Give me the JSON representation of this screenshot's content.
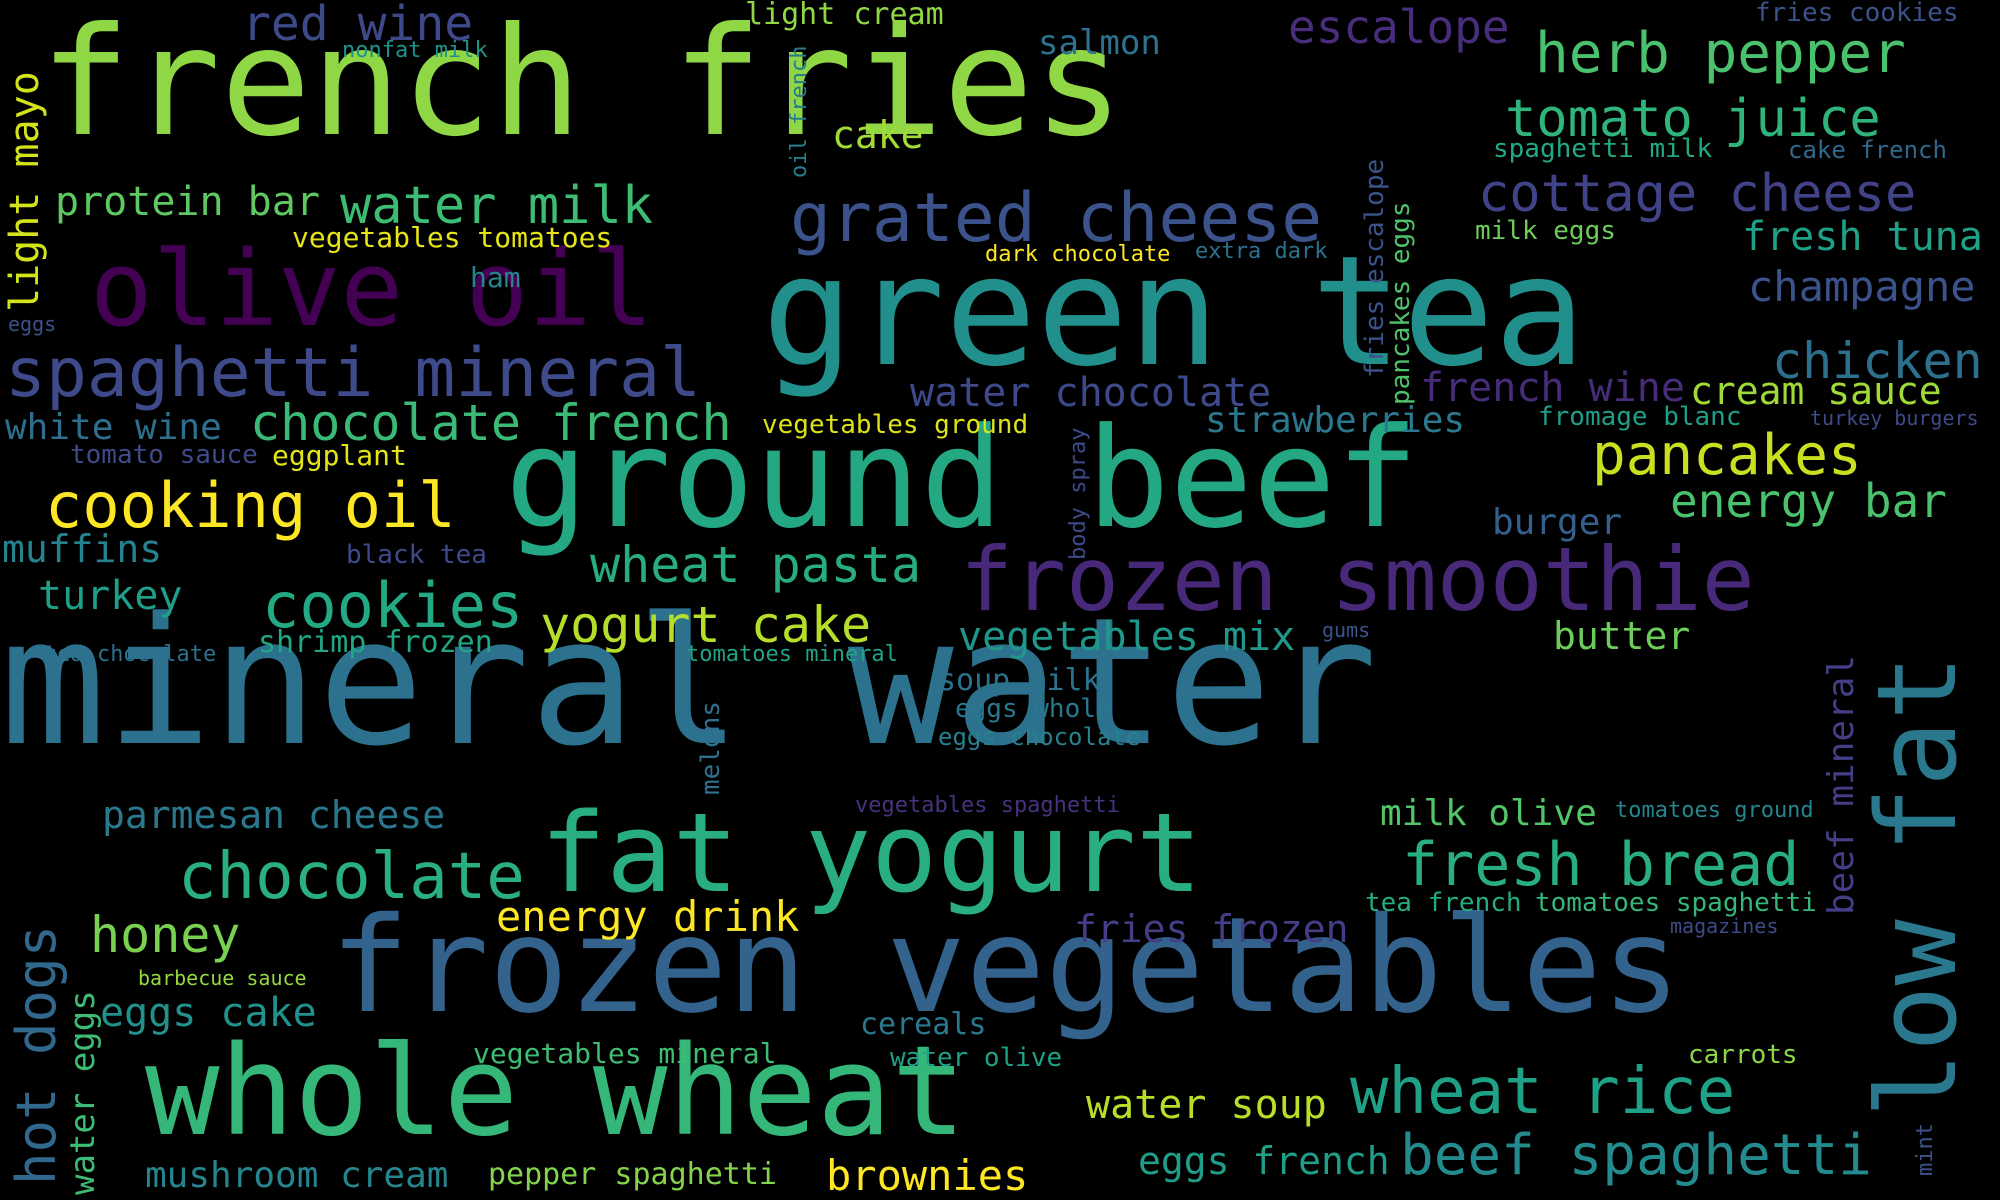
{
  "cloud": {
    "background": "#000000",
    "words": [
      {
        "text": "french fries",
        "color": "#8fd744"
      },
      {
        "text": "mineral water",
        "color": "#2c728e"
      },
      {
        "text": "green tea",
        "color": "#21908d"
      },
      {
        "text": "ground beef",
        "color": "#24a884"
      },
      {
        "text": "frozen vegetables",
        "color": "#33638d"
      },
      {
        "text": "whole wheat",
        "color": "#35b779"
      },
      {
        "text": "fat yogurt",
        "color": "#29af7f"
      },
      {
        "text": "olive oil",
        "color": "#440154"
      },
      {
        "text": "frozen smoothie",
        "color": "#482878"
      },
      {
        "text": "low fat",
        "color": "#2a788e"
      },
      {
        "text": "spaghetti mineral",
        "color": "#3e4a89"
      },
      {
        "text": "grated cheese",
        "color": "#3b528b"
      },
      {
        "text": "herb pepper",
        "color": "#4ac16d"
      },
      {
        "text": "tomato juice",
        "color": "#2fb47c"
      },
      {
        "text": "cottage cheese",
        "color": "#404387"
      },
      {
        "text": "water milk",
        "color": "#3dbc74"
      },
      {
        "text": "chocolate french",
        "color": "#3aba76"
      },
      {
        "text": "cooking oil",
        "color": "#fde725"
      },
      {
        "text": "cookies",
        "color": "#23a983"
      },
      {
        "text": "chocolate",
        "color": "#2ab07f"
      },
      {
        "text": "wheat pasta",
        "color": "#27ad81"
      },
      {
        "text": "yogurt cake",
        "color": "#b5de2b"
      },
      {
        "text": "fresh bread",
        "color": "#28ae80"
      },
      {
        "text": "wheat rice",
        "color": "#1fa188"
      },
      {
        "text": "beef spaghetti",
        "color": "#238a8d"
      },
      {
        "text": "pancakes",
        "color": "#c8e020"
      },
      {
        "text": "energy bar",
        "color": "#4ac16d"
      },
      {
        "text": "chicken",
        "color": "#2d708e"
      },
      {
        "text": "champagne",
        "color": "#3b528b"
      },
      {
        "text": "fresh tuna",
        "color": "#1fa187"
      },
      {
        "text": "cream sauce",
        "color": "#a0da39"
      },
      {
        "text": "escalope",
        "color": "#472d7b"
      },
      {
        "text": "red wine",
        "color": "#3e4989"
      },
      {
        "text": "light mayo",
        "color": "#d2e21b"
      },
      {
        "text": "protein bar",
        "color": "#5ec962"
      },
      {
        "text": "white wine",
        "color": "#2e6f8e"
      },
      {
        "text": "turkey",
        "color": "#1f9e89"
      },
      {
        "text": "muffins",
        "color": "#26828e"
      },
      {
        "text": "honey",
        "color": "#7ad151"
      },
      {
        "text": "hot dogs",
        "color": "#31688e"
      },
      {
        "text": "eggs cake",
        "color": "#21918c"
      },
      {
        "text": "parmesan cheese",
        "color": "#2a788e"
      },
      {
        "text": "energy drink",
        "color": "#fde725"
      },
      {
        "text": "mushroom cream",
        "color": "#25858e"
      },
      {
        "text": "pepper spaghetti",
        "color": "#84d44b"
      },
      {
        "text": "brownies",
        "color": "#fde725"
      },
      {
        "text": "water soup",
        "color": "#b8de29"
      },
      {
        "text": "eggs french",
        "color": "#1f9e89"
      },
      {
        "text": "water chocolate",
        "color": "#3e4989"
      },
      {
        "text": "strawberries",
        "color": "#2a788e"
      },
      {
        "text": "vegetables mix",
        "color": "#1f988b"
      },
      {
        "text": "butter",
        "color": "#6ccd5a"
      },
      {
        "text": "burger",
        "color": "#355f8d"
      },
      {
        "text": "french wine",
        "color": "#472c7a"
      },
      {
        "text": "fries frozen",
        "color": "#433e85"
      },
      {
        "text": "milk olive",
        "color": "#52c569"
      },
      {
        "text": "salmon",
        "color": "#2c728e"
      },
      {
        "text": "light cream",
        "color": "#90d743"
      },
      {
        "text": "cake",
        "color": "#a2da37"
      },
      {
        "text": "ham",
        "color": "#25848e"
      },
      {
        "text": "vegetables tomatoes",
        "color": "#e5e419"
      },
      {
        "text": "nonfat milk",
        "color": "#20928c"
      },
      {
        "text": "eggs",
        "color": "#3b528b"
      },
      {
        "text": "tomato sauce",
        "color": "#3e4a89"
      },
      {
        "text": "eggplant",
        "color": "#e2e418"
      },
      {
        "text": "black tea",
        "color": "#3e4989"
      },
      {
        "text": "shrimp frozen",
        "color": "#22a785"
      },
      {
        "text": "tea chocolate",
        "color": "#2d708e"
      },
      {
        "text": "tomatoes mineral",
        "color": "#20a386"
      },
      {
        "text": "soup milk",
        "color": "#2c728e"
      },
      {
        "text": "eggs whole",
        "color": "#2a788e"
      },
      {
        "text": "eggs chocolate",
        "color": "#27808e"
      },
      {
        "text": "vegetables spaghetti",
        "color": "#46327e"
      },
      {
        "text": "gums",
        "color": "#3a538b"
      },
      {
        "text": "cereals",
        "color": "#2a788e"
      },
      {
        "text": "water olive",
        "color": "#1fa187"
      },
      {
        "text": "vegetables mineral",
        "color": "#3fbc73"
      },
      {
        "text": "barbecue sauce",
        "color": "#95d840"
      },
      {
        "text": "vegetables ground",
        "color": "#dde318"
      },
      {
        "text": "dark chocolate",
        "color": "#fde725"
      },
      {
        "text": "extra dark",
        "color": "#2c728e"
      },
      {
        "text": "milk eggs",
        "color": "#6ccd5a"
      },
      {
        "text": "spaghetti milk",
        "color": "#22a884"
      },
      {
        "text": "cake french",
        "color": "#31688e"
      },
      {
        "text": "fries cookies",
        "color": "#3b528b"
      },
      {
        "text": "fromage blanc",
        "color": "#1f9e89"
      },
      {
        "text": "turkey burgers",
        "color": "#3e4a89"
      },
      {
        "text": "tomatoes ground",
        "color": "#25858e"
      },
      {
        "text": "tea french",
        "color": "#25ab82"
      },
      {
        "text": "tomatoes spaghetti",
        "color": "#35b779"
      },
      {
        "text": "magazines",
        "color": "#3e4a89"
      },
      {
        "text": "carrots",
        "color": "#8bd646"
      },
      {
        "text": "mint",
        "color": "#3b528b"
      },
      {
        "text": "oil french",
        "color": "#287c8e"
      },
      {
        "text": "fries escalope",
        "color": "#3b528b"
      },
      {
        "text": "pancakes eggs",
        "color": "#4ec36b"
      },
      {
        "text": "body spray",
        "color": "#3e4989"
      },
      {
        "text": "melons",
        "color": "#2d718e"
      },
      {
        "text": "beef mineral",
        "color": "#433e85"
      },
      {
        "text": "water eggs",
        "color": "#3dbc74"
      }
    ]
  }
}
